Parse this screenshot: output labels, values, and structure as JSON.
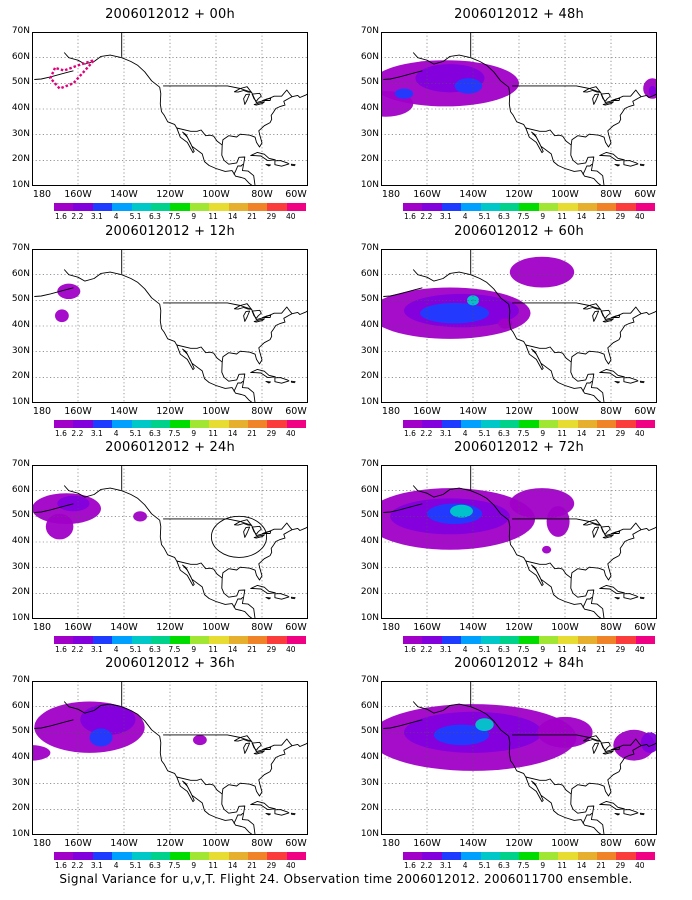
{
  "caption": "Signal Variance for u,v,T. Flight 24. Observation time 2006012012. 2006011700 ensemble.",
  "axes": {
    "y_ticks": [
      "70N",
      "60N",
      "50N",
      "40N",
      "30N",
      "20N",
      "10N"
    ],
    "x_ticks": [
      "180",
      "160W",
      "140W",
      "120W",
      "100W",
      "80W",
      "60W"
    ],
    "lon_range": [
      -180,
      -60
    ],
    "lat_range": [
      10,
      70
    ],
    "grid": "dotted"
  },
  "colorbar": {
    "labels": [
      "1.6",
      "2.2",
      "3.1",
      "4",
      "5.1",
      "6.3",
      "7.5",
      "9",
      "11",
      "14",
      "21",
      "29",
      "40"
    ],
    "colors": [
      "#a000c8",
      "#8200dc",
      "#1e3cff",
      "#00a0ff",
      "#00c8c8",
      "#00d28c",
      "#00dc00",
      "#a0e632",
      "#e6dc32",
      "#e6af2d",
      "#f08228",
      "#fa3c3c",
      "#f00082"
    ]
  },
  "panels": [
    {
      "title": "2006012012 + 00h"
    },
    {
      "title": "2006012012 + 48h"
    },
    {
      "title": "2006012012 + 12h"
    },
    {
      "title": "2006012012 + 60h"
    },
    {
      "title": "2006012012 + 24h"
    },
    {
      "title": "2006012012 + 72h"
    },
    {
      "title": "2006012012 + 36h"
    },
    {
      "title": "2006012012 + 84h"
    }
  ]
}
